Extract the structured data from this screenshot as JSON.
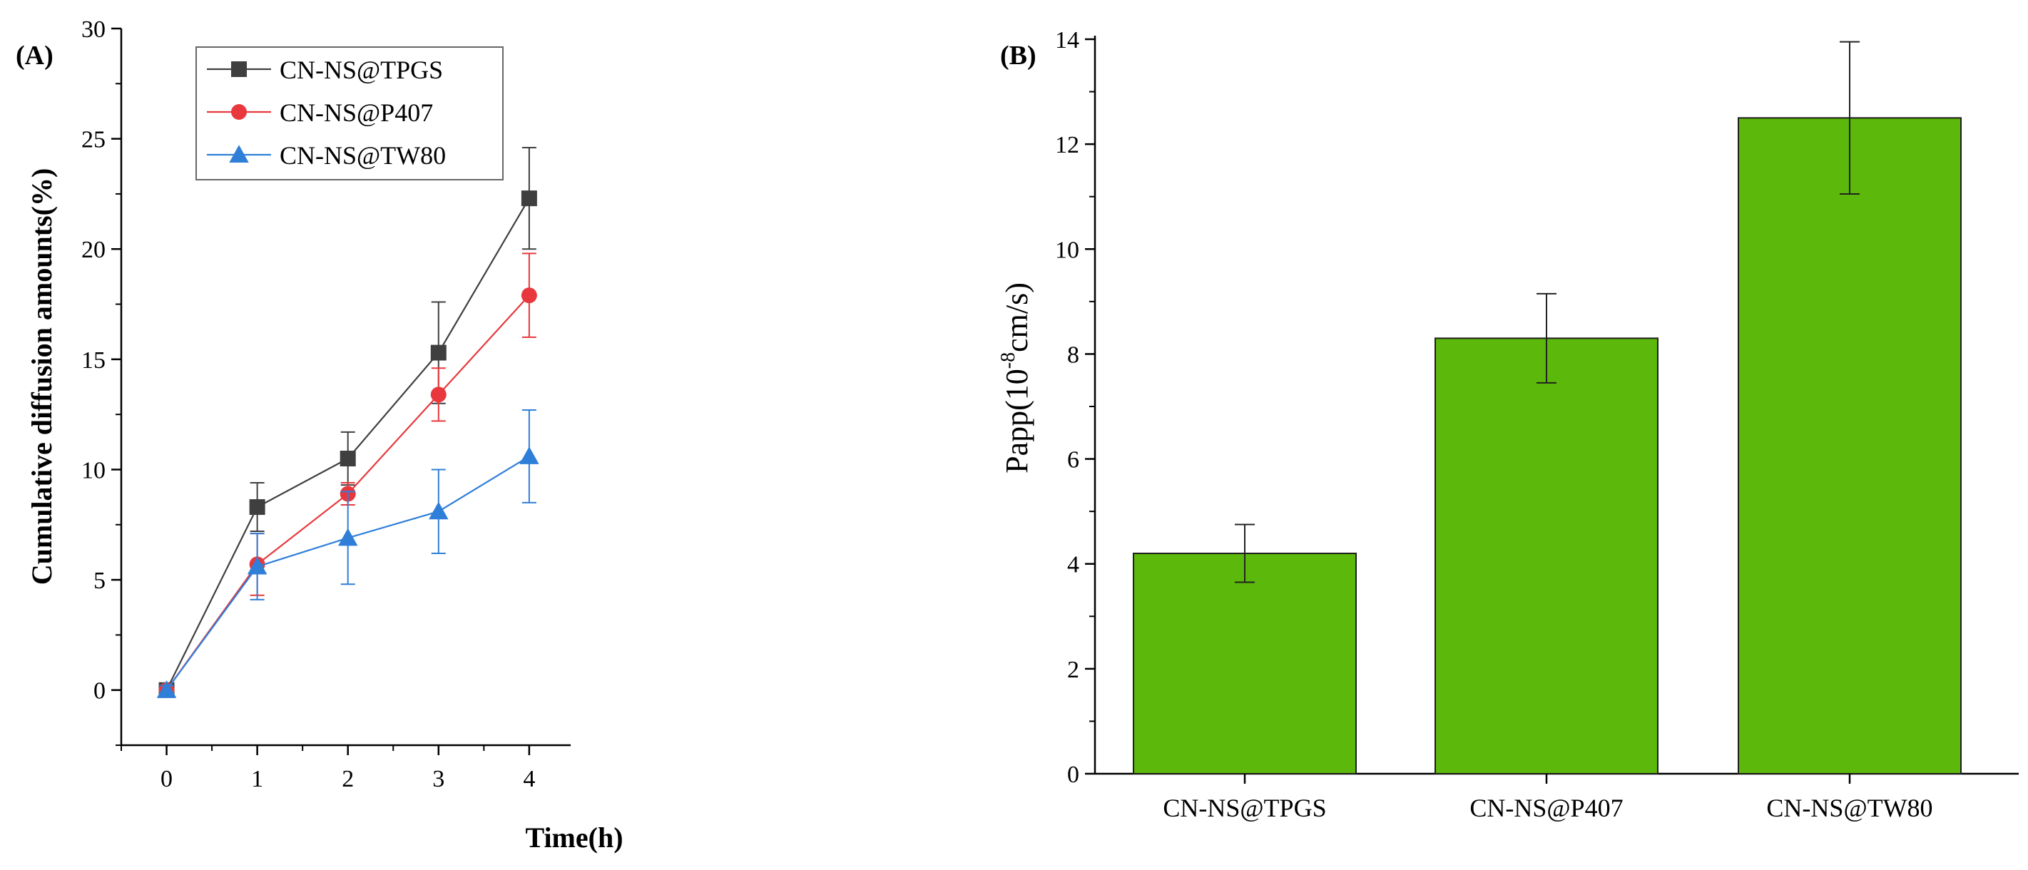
{
  "chart_data": [
    {
      "panel_label": "(A)",
      "type": "line",
      "title": "",
      "xlabel": "Time(h)",
      "ylabel": "Cumulative diffusion amounts(%)",
      "xlim": [
        -0.5,
        4.3
      ],
      "ylim": [
        -2.5,
        30
      ],
      "x_ticks": [
        0,
        1,
        2,
        3,
        4
      ],
      "y_ticks": [
        0,
        5,
        10,
        15,
        20,
        25,
        30
      ],
      "x": [
        0,
        1,
        2,
        3,
        4
      ],
      "legend_position": "top-left",
      "grid": false,
      "series": [
        {
          "name": "CN-NS@TPGS",
          "marker": "square",
          "color": "#3f3f3f",
          "values": [
            0,
            8.3,
            10.5,
            15.3,
            22.3
          ],
          "errors": [
            0.2,
            1.1,
            1.2,
            2.3,
            2.3
          ]
        },
        {
          "name": "CN-NS@P407",
          "marker": "circle",
          "color": "#e8383d",
          "values": [
            0,
            5.7,
            8.9,
            13.4,
            17.9
          ],
          "errors": [
            0.2,
            1.4,
            0.5,
            1.2,
            1.9
          ]
        },
        {
          "name": "CN-NS@TW80",
          "marker": "triangle",
          "color": "#2f7fd9",
          "values": [
            0,
            5.6,
            6.9,
            8.1,
            10.6
          ],
          "errors": [
            0.2,
            1.5,
            2.1,
            1.9,
            2.1
          ]
        }
      ]
    },
    {
      "panel_label": "(B)",
      "type": "bar",
      "title": "",
      "xlabel": "",
      "ylabel_main": "Papp(10",
      "ylabel_sup": "-8",
      "ylabel_tail": "cm/s)",
      "ylim": [
        0,
        14
      ],
      "y_ticks": [
        0,
        2,
        4,
        6,
        8,
        10,
        12,
        14
      ],
      "grid": false,
      "bar_color": "#5cb80a",
      "categories": [
        "CN-NS@TPGS",
        "CN-NS@P407",
        "CN-NS@TW80"
      ],
      "values": [
        4.2,
        8.3,
        12.5
      ],
      "errors": [
        0.55,
        0.85,
        1.45
      ]
    }
  ]
}
